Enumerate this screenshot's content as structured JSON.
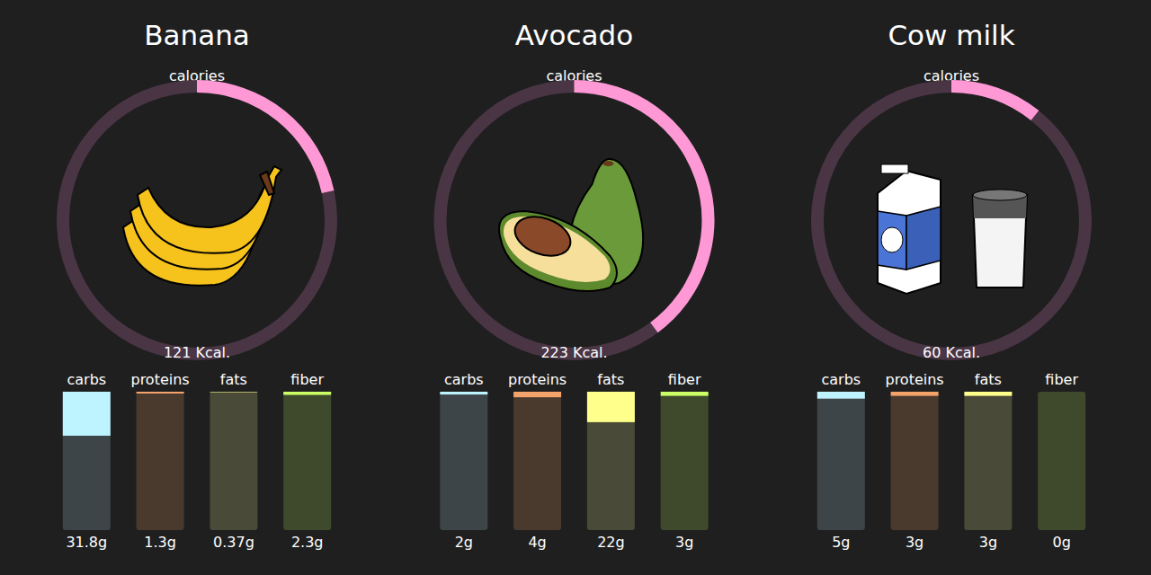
{
  "chart_data": [
    {
      "type": "bar",
      "title": "Banana",
      "gauge": {
        "label": "calories",
        "value": 121,
        "value_label": "121 Kcal.",
        "lim": [
          0,
          560
        ],
        "color": "#ff99d6"
      },
      "categories": [
        "carbs",
        "proteins",
        "fats",
        "fiber"
      ],
      "values": [
        31.8,
        1.3,
        0.37,
        2.3
      ],
      "value_labels": [
        "31.8g",
        "1.3g",
        "0.37g",
        "2.3g"
      ],
      "colors": [
        "#bdf4ff",
        "#f4a46a",
        "#ffff8c",
        "#ccff66"
      ],
      "ylim": [
        0,
        100
      ],
      "data_labels": true,
      "tick_labels": false
    },
    {
      "type": "bar",
      "title": "Avocado",
      "gauge": {
        "label": "calories",
        "value": 223,
        "value_label": "223 Kcal.",
        "lim": [
          0,
          560
        ],
        "color": "#ff99d6"
      },
      "categories": [
        "carbs",
        "proteins",
        "fats",
        "fiber"
      ],
      "values": [
        2,
        4,
        22,
        3
      ],
      "value_labels": [
        "2g",
        "4g",
        "22g",
        "3g"
      ],
      "colors": [
        "#bdf4ff",
        "#f4a46a",
        "#ffff8c",
        "#ccff66"
      ],
      "ylim": [
        0,
        100
      ],
      "data_labels": true,
      "tick_labels": false
    },
    {
      "type": "bar",
      "title": "Cow milk",
      "gauge": {
        "label": "calories",
        "value": 60,
        "value_label": "60 Kcal.",
        "lim": [
          0,
          560
        ],
        "color": "#ff99d6"
      },
      "categories": [
        "carbs",
        "proteins",
        "fats",
        "fiber"
      ],
      "values": [
        5,
        3,
        3,
        0
      ],
      "value_labels": [
        "5g",
        "3g",
        "3g",
        "0g"
      ],
      "colors": [
        "#bdf4ff",
        "#f4a46a",
        "#ffff8c",
        "#ccff66"
      ],
      "ylim": [
        0,
        100
      ],
      "data_labels": true,
      "tick_labels": false
    }
  ]
}
